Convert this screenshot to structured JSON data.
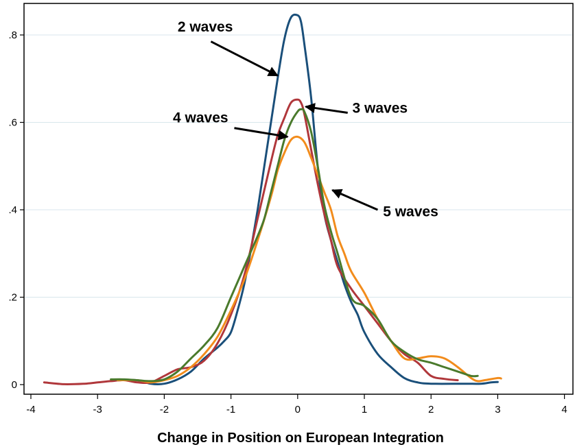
{
  "chart_data": {
    "type": "line",
    "title": "",
    "xlabel": "Change in Position on European Integration",
    "ylabel": "",
    "xlim": [
      -4,
      4
    ],
    "ylim": [
      0,
      0.85
    ],
    "xticks": [
      -4,
      -3,
      -2,
      -1,
      0,
      1,
      2,
      3,
      4
    ],
    "xtick_labels": [
      "-4",
      "-3",
      "-2",
      "-1",
      "0",
      "1",
      "2",
      "3",
      "4"
    ],
    "yticks": [
      0,
      0.2,
      0.4,
      0.6,
      0.8
    ],
    "ytick_labels": [
      "0",
      ".2",
      ".4",
      ".6",
      ".8"
    ],
    "grid": "horizontal",
    "series": [
      {
        "name": "2 waves",
        "color": "#1a4f7a",
        "points": [
          [
            -2.7,
            0.01
          ],
          [
            -2.4,
            0.01
          ],
          [
            -2.2,
            0.002
          ],
          [
            -2.0,
            0.002
          ],
          [
            -1.8,
            0.012
          ],
          [
            -1.6,
            0.03
          ],
          [
            -1.4,
            0.06
          ],
          [
            -1.2,
            0.085
          ],
          [
            -1.1,
            0.1
          ],
          [
            -1.0,
            0.12
          ],
          [
            -0.9,
            0.17
          ],
          [
            -0.8,
            0.23
          ],
          [
            -0.7,
            0.31
          ],
          [
            -0.6,
            0.4
          ],
          [
            -0.5,
            0.5
          ],
          [
            -0.4,
            0.6
          ],
          [
            -0.3,
            0.7
          ],
          [
            -0.2,
            0.79
          ],
          [
            -0.1,
            0.84
          ],
          [
            0.0,
            0.845
          ],
          [
            0.05,
            0.83
          ],
          [
            0.1,
            0.78
          ],
          [
            0.2,
            0.66
          ],
          [
            0.3,
            0.5
          ],
          [
            0.4,
            0.39
          ],
          [
            0.5,
            0.33
          ],
          [
            0.6,
            0.28
          ],
          [
            0.7,
            0.23
          ],
          [
            0.8,
            0.19
          ],
          [
            0.9,
            0.16
          ],
          [
            1.0,
            0.12
          ],
          [
            1.2,
            0.07
          ],
          [
            1.4,
            0.04
          ],
          [
            1.6,
            0.015
          ],
          [
            1.8,
            0.005
          ],
          [
            2.0,
            0.002
          ],
          [
            2.5,
            0.002
          ],
          [
            2.75,
            0.002
          ],
          [
            2.9,
            0.005
          ],
          [
            3.0,
            0.006
          ]
        ]
      },
      {
        "name": "3 waves",
        "color": "#b0373b",
        "points": [
          [
            -3.8,
            0.005
          ],
          [
            -3.5,
            0.001
          ],
          [
            -3.2,
            0.002
          ],
          [
            -3.0,
            0.005
          ],
          [
            -2.8,
            0.008
          ],
          [
            -2.6,
            0.01
          ],
          [
            -2.4,
            0.005
          ],
          [
            -2.2,
            0.005
          ],
          [
            -2.0,
            0.02
          ],
          [
            -1.8,
            0.035
          ],
          [
            -1.6,
            0.04
          ],
          [
            -1.4,
            0.055
          ],
          [
            -1.2,
            0.095
          ],
          [
            -1.0,
            0.16
          ],
          [
            -0.8,
            0.25
          ],
          [
            -0.6,
            0.38
          ],
          [
            -0.4,
            0.51
          ],
          [
            -0.3,
            0.57
          ],
          [
            -0.2,
            0.61
          ],
          [
            -0.1,
            0.645
          ],
          [
            0.0,
            0.652
          ],
          [
            0.05,
            0.645
          ],
          [
            0.1,
            0.62
          ],
          [
            0.2,
            0.54
          ],
          [
            0.3,
            0.46
          ],
          [
            0.4,
            0.39
          ],
          [
            0.5,
            0.33
          ],
          [
            0.6,
            0.27
          ],
          [
            0.8,
            0.22
          ],
          [
            1.0,
            0.18
          ],
          [
            1.2,
            0.14
          ],
          [
            1.4,
            0.1
          ],
          [
            1.6,
            0.07
          ],
          [
            1.8,
            0.05
          ],
          [
            2.0,
            0.02
          ],
          [
            2.2,
            0.013
          ],
          [
            2.4,
            0.01
          ]
        ]
      },
      {
        "name": "4 waves",
        "color": "#4a7a2c",
        "points": [
          [
            -2.8,
            0.012
          ],
          [
            -2.6,
            0.012
          ],
          [
            -2.4,
            0.01
          ],
          [
            -2.2,
            0.008
          ],
          [
            -2.0,
            0.012
          ],
          [
            -1.8,
            0.03
          ],
          [
            -1.6,
            0.06
          ],
          [
            -1.4,
            0.09
          ],
          [
            -1.2,
            0.13
          ],
          [
            -1.0,
            0.2
          ],
          [
            -0.8,
            0.27
          ],
          [
            -0.6,
            0.34
          ],
          [
            -0.5,
            0.38
          ],
          [
            -0.4,
            0.44
          ],
          [
            -0.3,
            0.5
          ],
          [
            -0.2,
            0.56
          ],
          [
            -0.1,
            0.6
          ],
          [
            0.0,
            0.625
          ],
          [
            0.05,
            0.63
          ],
          [
            0.1,
            0.625
          ],
          [
            0.2,
            0.58
          ],
          [
            0.3,
            0.5
          ],
          [
            0.4,
            0.41
          ],
          [
            0.5,
            0.35
          ],
          [
            0.6,
            0.3
          ],
          [
            0.8,
            0.2
          ],
          [
            1.0,
            0.18
          ],
          [
            1.2,
            0.15
          ],
          [
            1.4,
            0.1
          ],
          [
            1.6,
            0.075
          ],
          [
            1.8,
            0.058
          ],
          [
            2.0,
            0.05
          ],
          [
            2.2,
            0.04
          ],
          [
            2.4,
            0.03
          ],
          [
            2.6,
            0.02
          ],
          [
            2.7,
            0.02
          ]
        ]
      },
      {
        "name": "5 waves",
        "color": "#f28c1c",
        "points": [
          [
            -2.7,
            0.01
          ],
          [
            -2.4,
            0.01
          ],
          [
            -2.2,
            0.005
          ],
          [
            -2.0,
            0.01
          ],
          [
            -1.8,
            0.02
          ],
          [
            -1.6,
            0.04
          ],
          [
            -1.4,
            0.07
          ],
          [
            -1.2,
            0.11
          ],
          [
            -1.0,
            0.17
          ],
          [
            -0.8,
            0.24
          ],
          [
            -0.6,
            0.33
          ],
          [
            -0.4,
            0.43
          ],
          [
            -0.3,
            0.49
          ],
          [
            -0.2,
            0.53
          ],
          [
            -0.1,
            0.56
          ],
          [
            0.0,
            0.567
          ],
          [
            0.1,
            0.555
          ],
          [
            0.2,
            0.52
          ],
          [
            0.3,
            0.48
          ],
          [
            0.4,
            0.44
          ],
          [
            0.5,
            0.4
          ],
          [
            0.6,
            0.34
          ],
          [
            0.7,
            0.3
          ],
          [
            0.8,
            0.26
          ],
          [
            1.0,
            0.21
          ],
          [
            1.2,
            0.15
          ],
          [
            1.4,
            0.1
          ],
          [
            1.6,
            0.06
          ],
          [
            1.8,
            0.06
          ],
          [
            2.0,
            0.065
          ],
          [
            2.2,
            0.06
          ],
          [
            2.4,
            0.04
          ],
          [
            2.6,
            0.015
          ],
          [
            2.7,
            0.008
          ],
          [
            2.8,
            0.01
          ],
          [
            3.0,
            0.015
          ],
          [
            3.05,
            0.014
          ]
        ]
      }
    ],
    "annotations": [
      {
        "text": "2 waves",
        "label_x": -1.8,
        "label_y": 0.808,
        "anchor": "start",
        "arrow_from": [
          -1.3,
          0.785
        ],
        "arrow_to": [
          -0.3,
          0.707
        ]
      },
      {
        "text": "3 waves",
        "label_x": 0.82,
        "label_y": 0.622,
        "anchor": "start",
        "arrow_from": [
          0.75,
          0.622
        ],
        "arrow_to": [
          0.12,
          0.636
        ]
      },
      {
        "text": "4 waves",
        "label_x": -1.87,
        "label_y": 0.6,
        "anchor": "start",
        "arrow_from": [
          -0.95,
          0.587
        ],
        "arrow_to": [
          -0.15,
          0.567
        ]
      },
      {
        "text": "5 waves",
        "label_x": 1.28,
        "label_y": 0.385,
        "anchor": "start",
        "arrow_from": [
          1.2,
          0.4
        ],
        "arrow_to": [
          0.52,
          0.445
        ]
      }
    ]
  }
}
